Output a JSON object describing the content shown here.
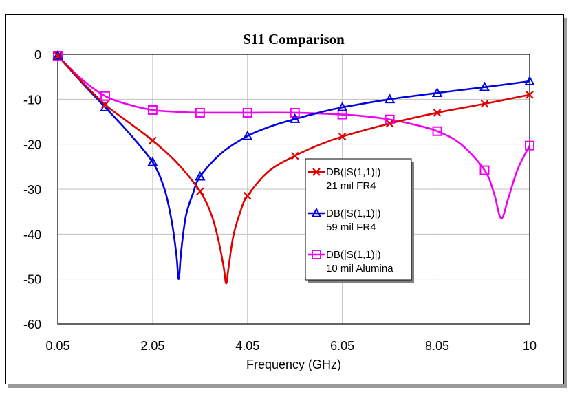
{
  "chart_data": {
    "type": "line",
    "title": "S11 Comparison",
    "xlabel": "Frequency (GHz)",
    "ylabel": "",
    "xlim": [
      0.05,
      10
    ],
    "ylim": [
      -60,
      0
    ],
    "grid": true,
    "x_ticks": [
      0.05,
      2.05,
      4.05,
      6.05,
      8.05,
      10
    ],
    "x_tick_labels": [
      "0.05",
      "2.05",
      "4.05",
      "6.05",
      "8.05",
      "10"
    ],
    "y_ticks": [
      0,
      -10,
      -20,
      -30,
      -40,
      -50,
      -60
    ],
    "y_tick_labels": [
      "0",
      "-10",
      "-20",
      "-30",
      "-40",
      "-50",
      "-60"
    ],
    "legend_position": "center-right",
    "series": [
      {
        "name": "DB(|S(1,1)|) 21 mil FR4",
        "legend_line1": "DB(|S(1,1)|)",
        "legend_line2": "21 mil FR4",
        "color": "#e00000",
        "marker": "x",
        "marker_x": [
          0.05,
          1.05,
          2.05,
          3.05,
          4.05,
          5.05,
          6.05,
          7.05,
          8.05,
          9.05,
          10
        ],
        "marker_y": [
          -0.3,
          -11.2,
          -19.2,
          -30.5,
          -31.5,
          -22.6,
          -18.3,
          -15.4,
          -13.0,
          -11.0,
          -9.0
        ],
        "x": [
          0.05,
          0.55,
          1.05,
          1.55,
          2.05,
          2.55,
          3.05,
          3.3,
          3.45,
          3.55,
          3.6,
          3.65,
          3.75,
          3.9,
          4.05,
          4.5,
          5.05,
          5.55,
          6.05,
          7.05,
          8.05,
          9.05,
          10
        ],
        "y": [
          -0.3,
          -6.0,
          -11.2,
          -15.2,
          -19.2,
          -24.0,
          -30.5,
          -36.0,
          -42.0,
          -47.5,
          -51.0,
          -47.5,
          -40.5,
          -35.0,
          -31.5,
          -26.0,
          -22.6,
          -20.2,
          -18.3,
          -15.4,
          -13.0,
          -11.0,
          -9.0
        ]
      },
      {
        "name": "DB(|S(1,1)|) 59 mil FR4",
        "legend_line1": "DB(|S(1,1)|)",
        "legend_line2": "59 mil FR4",
        "color": "#0000e0",
        "marker": "triangle",
        "marker_x": [
          0.05,
          1.05,
          2.05,
          3.05,
          4.05,
          5.05,
          6.05,
          7.05,
          8.05,
          9.05,
          10
        ],
        "marker_y": [
          -0.3,
          -11.8,
          -24.0,
          -27.2,
          -18.2,
          -14.4,
          -11.8,
          -10.0,
          -8.6,
          -7.3,
          -6.0
        ],
        "x": [
          0.05,
          0.55,
          1.05,
          1.55,
          2.05,
          2.3,
          2.45,
          2.55,
          2.6,
          2.65,
          2.75,
          2.9,
          3.05,
          3.5,
          4.05,
          4.55,
          5.05,
          5.55,
          6.05,
          7.05,
          8.05,
          9.05,
          10
        ],
        "y": [
          -0.3,
          -6.2,
          -11.8,
          -17.5,
          -24.0,
          -30.0,
          -37.0,
          -44.5,
          -50.0,
          -44.0,
          -36.0,
          -31.0,
          -27.2,
          -22.0,
          -18.2,
          -16.0,
          -14.4,
          -13.0,
          -11.8,
          -10.0,
          -8.6,
          -7.3,
          -6.0
        ]
      },
      {
        "name": "DB(|S(1,1)|) 10 mil Alumina",
        "legend_line1": "DB(|S(1,1)|)",
        "legend_line2": "10 mil Alumina",
        "color": "#f000f0",
        "marker": "square",
        "marker_x": [
          0.05,
          1.05,
          2.05,
          3.05,
          4.05,
          5.05,
          6.05,
          7.05,
          8.05,
          9.05,
          10
        ],
        "marker_y": [
          -0.3,
          -9.3,
          -12.4,
          -13.0,
          -13.0,
          -13.0,
          -13.4,
          -14.5,
          -17.1,
          -25.8,
          -20.3
        ],
        "x": [
          0.05,
          0.55,
          1.05,
          1.55,
          2.05,
          2.55,
          3.05,
          4.05,
          5.05,
          6.05,
          6.55,
          7.05,
          7.55,
          8.05,
          8.55,
          9.05,
          9.25,
          9.4,
          9.55,
          9.75,
          10
        ],
        "y": [
          -0.3,
          -5.5,
          -9.3,
          -11.2,
          -12.4,
          -12.8,
          -13.0,
          -13.0,
          -13.0,
          -13.4,
          -13.8,
          -14.5,
          -15.6,
          -17.1,
          -20.0,
          -25.8,
          -31.0,
          -36.5,
          -32.0,
          -25.5,
          -20.3
        ]
      }
    ]
  }
}
